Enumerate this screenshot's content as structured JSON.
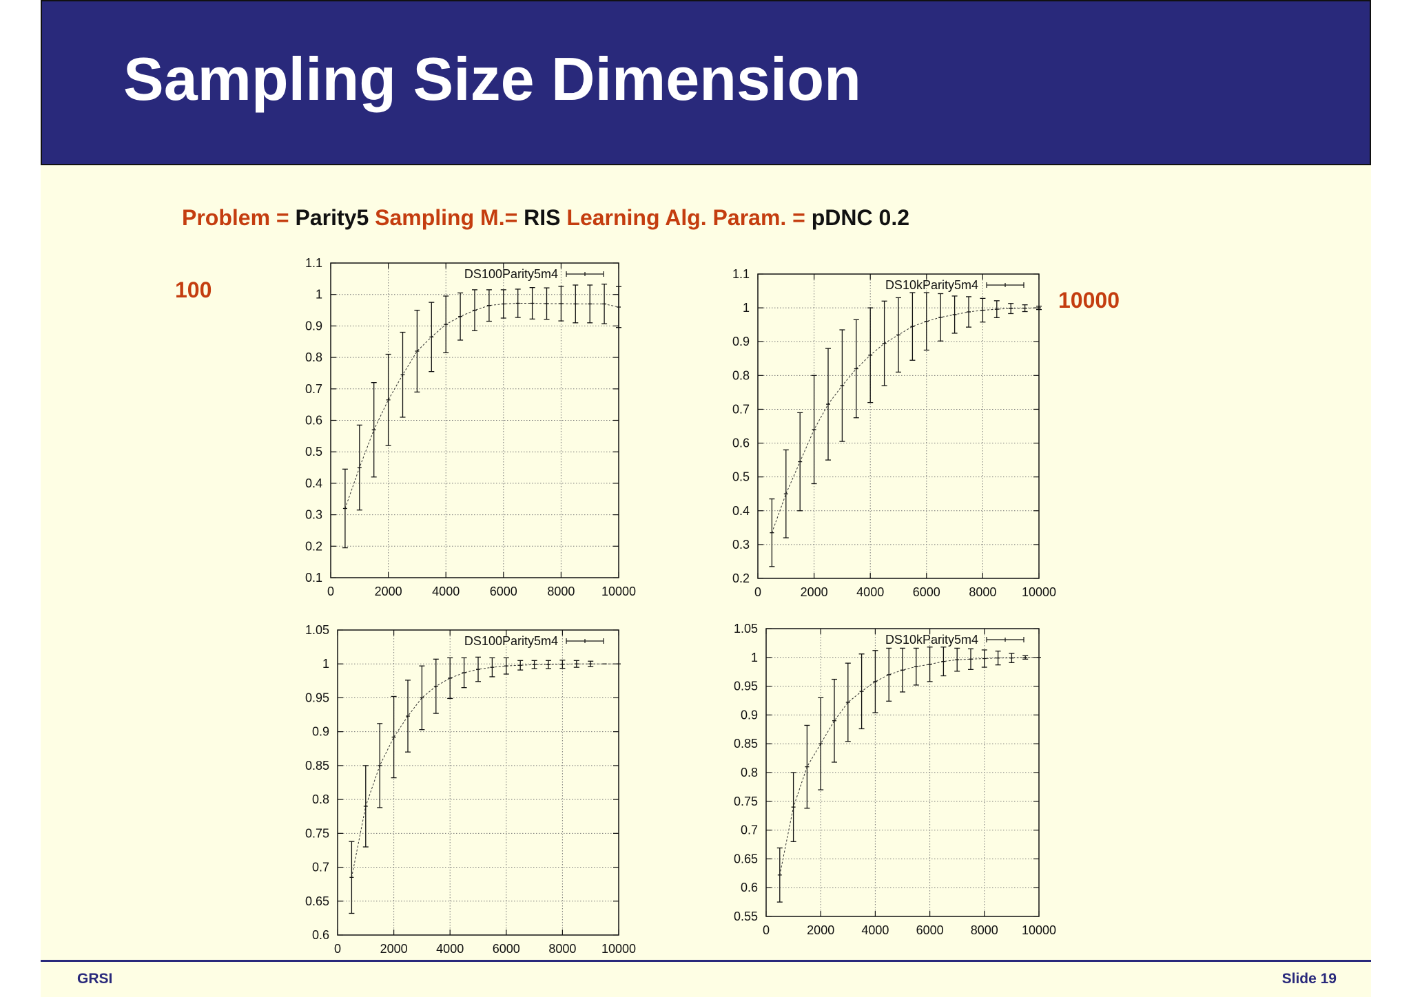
{
  "slide": {
    "title": "Sampling Size Dimension",
    "params": [
      {
        "key": "Problem = ",
        "value": " Parity5 "
      },
      {
        "key": "Sampling M.= ",
        "value": "RIS "
      },
      {
        "key": " Learning Alg. Param. = ",
        "value": "pDNC 0.2"
      }
    ],
    "left_label": "100",
    "right_label": "10000",
    "footer_left": "GRSI",
    "footer_right": "Slide 19"
  },
  "chart_data": [
    {
      "type": "line",
      "legend": "DS100Parity5m4",
      "legend_position": "top-right",
      "grid": true,
      "xlim": [
        0,
        10000
      ],
      "ylim": [
        0.1,
        1.1
      ],
      "xticks": [
        0,
        2000,
        4000,
        6000,
        8000,
        10000
      ],
      "yticks": [
        0.1,
        0.2,
        0.3,
        0.4,
        0.5,
        0.6,
        0.7,
        0.8,
        0.9,
        1,
        1.1
      ],
      "series": [
        {
          "x": [
            500,
            1000,
            1500,
            2000,
            2500,
            3000,
            3500,
            4000,
            4500,
            5000,
            5500,
            6000,
            6500,
            7000,
            7500,
            8000,
            8500,
            9000,
            9500,
            10000
          ],
          "y": [
            0.32,
            0.45,
            0.57,
            0.665,
            0.745,
            0.82,
            0.865,
            0.905,
            0.93,
            0.95,
            0.965,
            0.97,
            0.972,
            0.972,
            0.971,
            0.971,
            0.97,
            0.97,
            0.97,
            0.96
          ],
          "err": [
            0.125,
            0.135,
            0.15,
            0.145,
            0.135,
            0.13,
            0.11,
            0.09,
            0.075,
            0.065,
            0.05,
            0.045,
            0.045,
            0.05,
            0.05,
            0.055,
            0.06,
            0.06,
            0.063,
            0.065
          ]
        }
      ]
    },
    {
      "type": "line",
      "legend": "DS10kParity5m4",
      "legend_position": "top-right",
      "grid": true,
      "xlim": [
        0,
        10000
      ],
      "ylim": [
        0.2,
        1.1
      ],
      "xticks": [
        0,
        2000,
        4000,
        6000,
        8000,
        10000
      ],
      "yticks": [
        0.2,
        0.3,
        0.4,
        0.5,
        0.6,
        0.7,
        0.8,
        0.9,
        1,
        1.1
      ],
      "series": [
        {
          "x": [
            500,
            1000,
            1500,
            2000,
            2500,
            3000,
            3500,
            4000,
            4500,
            5000,
            5500,
            6000,
            6500,
            7000,
            7500,
            8000,
            8500,
            9000,
            9500,
            10000
          ],
          "y": [
            0.335,
            0.45,
            0.545,
            0.64,
            0.715,
            0.77,
            0.82,
            0.86,
            0.895,
            0.92,
            0.945,
            0.96,
            0.972,
            0.98,
            0.988,
            0.993,
            0.996,
            0.998,
            0.999,
            1.0
          ],
          "err": [
            0.1,
            0.13,
            0.145,
            0.16,
            0.165,
            0.165,
            0.145,
            0.14,
            0.125,
            0.11,
            0.1,
            0.085,
            0.07,
            0.055,
            0.045,
            0.035,
            0.025,
            0.015,
            0.01,
            0.005
          ]
        }
      ]
    },
    {
      "type": "line",
      "legend": "DS100Parity5m4",
      "legend_position": "top-right",
      "grid": true,
      "xlim": [
        0,
        10000
      ],
      "ylim": [
        0.6,
        1.05
      ],
      "xticks": [
        0,
        2000,
        4000,
        6000,
        8000,
        10000
      ],
      "yticks": [
        0.6,
        0.65,
        0.7,
        0.75,
        0.8,
        0.85,
        0.9,
        0.95,
        1,
        1.05
      ],
      "series": [
        {
          "x": [
            500,
            1000,
            1500,
            2000,
            2500,
            3000,
            3500,
            4000,
            4500,
            5000,
            5500,
            6000,
            6500,
            7000,
            7500,
            8000,
            8500,
            9000,
            9500,
            10000
          ],
          "y": [
            0.685,
            0.79,
            0.85,
            0.892,
            0.923,
            0.95,
            0.967,
            0.979,
            0.987,
            0.992,
            0.995,
            0.997,
            0.998,
            0.999,
            0.999,
            0.9995,
            1.0,
            1.0,
            1.0,
            1.0
          ],
          "err": [
            0.053,
            0.06,
            0.062,
            0.06,
            0.053,
            0.047,
            0.04,
            0.03,
            0.022,
            0.018,
            0.014,
            0.012,
            0.007,
            0.006,
            0.006,
            0.006,
            0.005,
            0.004,
            0.0,
            0.0
          ]
        }
      ]
    },
    {
      "type": "line",
      "legend": "DS10kParity5m4",
      "legend_position": "top-right",
      "grid": true,
      "xlim": [
        0,
        10000
      ],
      "ylim": [
        0.55,
        1.05
      ],
      "xticks": [
        0,
        2000,
        4000,
        6000,
        8000,
        10000
      ],
      "yticks": [
        0.55,
        0.6,
        0.65,
        0.7,
        0.75,
        0.8,
        0.85,
        0.9,
        0.95,
        1,
        1.05
      ],
      "series": [
        {
          "x": [
            500,
            1000,
            1500,
            2000,
            2500,
            3000,
            3500,
            4000,
            4500,
            5000,
            5500,
            6000,
            6500,
            7000,
            7500,
            8000,
            8500,
            9000,
            9500,
            10000
          ],
          "y": [
            0.622,
            0.74,
            0.81,
            0.85,
            0.89,
            0.922,
            0.941,
            0.958,
            0.97,
            0.978,
            0.984,
            0.988,
            0.993,
            0.996,
            0.997,
            0.998,
            0.999,
            0.999,
            1.0,
            1.0
          ],
          "err": [
            0.047,
            0.06,
            0.072,
            0.08,
            0.072,
            0.068,
            0.065,
            0.054,
            0.046,
            0.038,
            0.032,
            0.03,
            0.025,
            0.02,
            0.018,
            0.015,
            0.012,
            0.008,
            0.003,
            0.0
          ]
        }
      ]
    }
  ]
}
